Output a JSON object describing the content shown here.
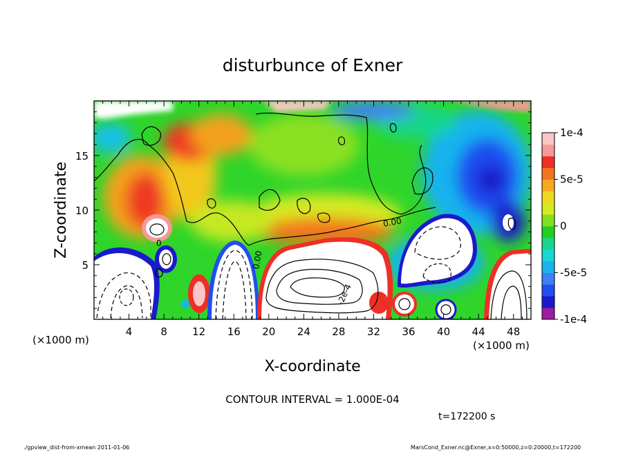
{
  "chart_data": {
    "type": "heatmap",
    "title": "disturbunce of Exner",
    "xlabel": "X-coordinate",
    "ylabel": "Z-coordinate",
    "x_unit_left": "(×1000 m)",
    "x_unit_right": "(×1000 m)",
    "xlim": [
      0,
      50
    ],
    "ylim": [
      0,
      20
    ],
    "x_ticks": [
      4,
      8,
      12,
      16,
      20,
      24,
      28,
      32,
      36,
      40,
      44,
      48
    ],
    "y_ticks": [
      5,
      10,
      15
    ],
    "colorbar": {
      "range": [
        -0.0001,
        0.0001
      ],
      "tick_values": [
        0.0001,
        5e-05,
        0,
        -5e-05,
        -0.0001
      ],
      "tick_labels": [
        "1e-4",
        "5e-5",
        "0",
        "-5e-5",
        "-1e-4"
      ],
      "colors": [
        "#9a1e9e",
        "#1a1acc",
        "#1f4ff0",
        "#3f7ff7",
        "#19b3ee",
        "#18d6d1",
        "#19d68c",
        "#22d022",
        "#82e020",
        "#d3ec20",
        "#f0d820",
        "#f5a91e",
        "#f3741d",
        "#ee2f25",
        "#f49a9a",
        "#f8c6c6"
      ]
    },
    "contour_labels": [
      {
        "text": "0.00",
        "x": 39.5,
        "z": 8.6
      },
      {
        "text": "0.00",
        "x": 18.0,
        "z": 6.0
      },
      {
        "text": "0",
        "x": 7.5,
        "z": 7.5
      },
      {
        "text": "-2e-4",
        "x": 29.0,
        "z": 3.6
      }
    ],
    "fields": [
      {
        "x": 4,
        "z": 10,
        "value": 7e-05
      },
      {
        "x": 9.5,
        "z": 17.5,
        "value": 8e-05
      },
      {
        "x": 22,
        "z": 16,
        "value": 1e-05
      },
      {
        "x": 44.5,
        "z": 13,
        "value": -9e-05
      },
      {
        "x": 3.5,
        "z": 2.5,
        "value": -0.0003
      },
      {
        "x": 16,
        "z": 3,
        "value": -0.0003
      },
      {
        "x": 26,
        "z": 3.5,
        "value": -0.0003
      },
      {
        "x": 40.5,
        "z": 6.5,
        "value": -0.0002
      },
      {
        "x": 46,
        "z": 3,
        "value": -0.0002
      }
    ]
  },
  "footer": {
    "contour_interval": "CONTOUR INTERVAL = 1.000E-04",
    "time": "t=172200 s",
    "left_note": "./gpview_dist-from-xmean  2011-01-06",
    "right_note": "MarsCond_Exner.nc@Exner,x=0:50000,z=0:20000,t=172200"
  }
}
